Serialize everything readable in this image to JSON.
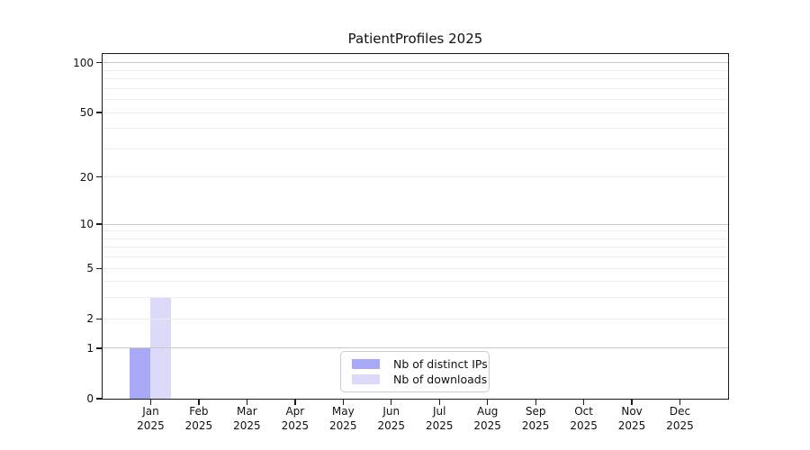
{
  "chart_data": {
    "type": "bar",
    "title": "PatientProfiles 2025",
    "months": [
      "Jan",
      "Feb",
      "Mar",
      "Apr",
      "May",
      "Jun",
      "Jul",
      "Aug",
      "Sep",
      "Oct",
      "Nov",
      "Dec"
    ],
    "year": "2025",
    "series": [
      {
        "name": "Nb of distinct IPs",
        "color": "#a8a8f6",
        "values": [
          1,
          0,
          0,
          0,
          0,
          0,
          0,
          0,
          0,
          0,
          0,
          0
        ]
      },
      {
        "name": "Nb of downloads",
        "color": "#dbdbf9",
        "values": [
          3,
          0,
          0,
          0,
          0,
          0,
          0,
          0,
          0,
          0,
          0,
          0
        ]
      }
    ],
    "y_axis": {
      "scale": "log1p",
      "tick_values": [
        0,
        1,
        2,
        5,
        10,
        20,
        50,
        100
      ],
      "axis_max_value": 113,
      "major_grid_values": [
        1,
        10,
        100
      ],
      "minor_grid_values": [
        2,
        3,
        4,
        6,
        7,
        8,
        9,
        20,
        30,
        40,
        60,
        70,
        80,
        90
      ],
      "labeled_grid_values": [
        2,
        5,
        20,
        50
      ],
      "major_grid_color": "#c8c8c8",
      "minor_grid_color": "#ededed"
    },
    "xlabel": "",
    "ylabel": "",
    "legend_position": "bottom-center",
    "grid": "on"
  }
}
